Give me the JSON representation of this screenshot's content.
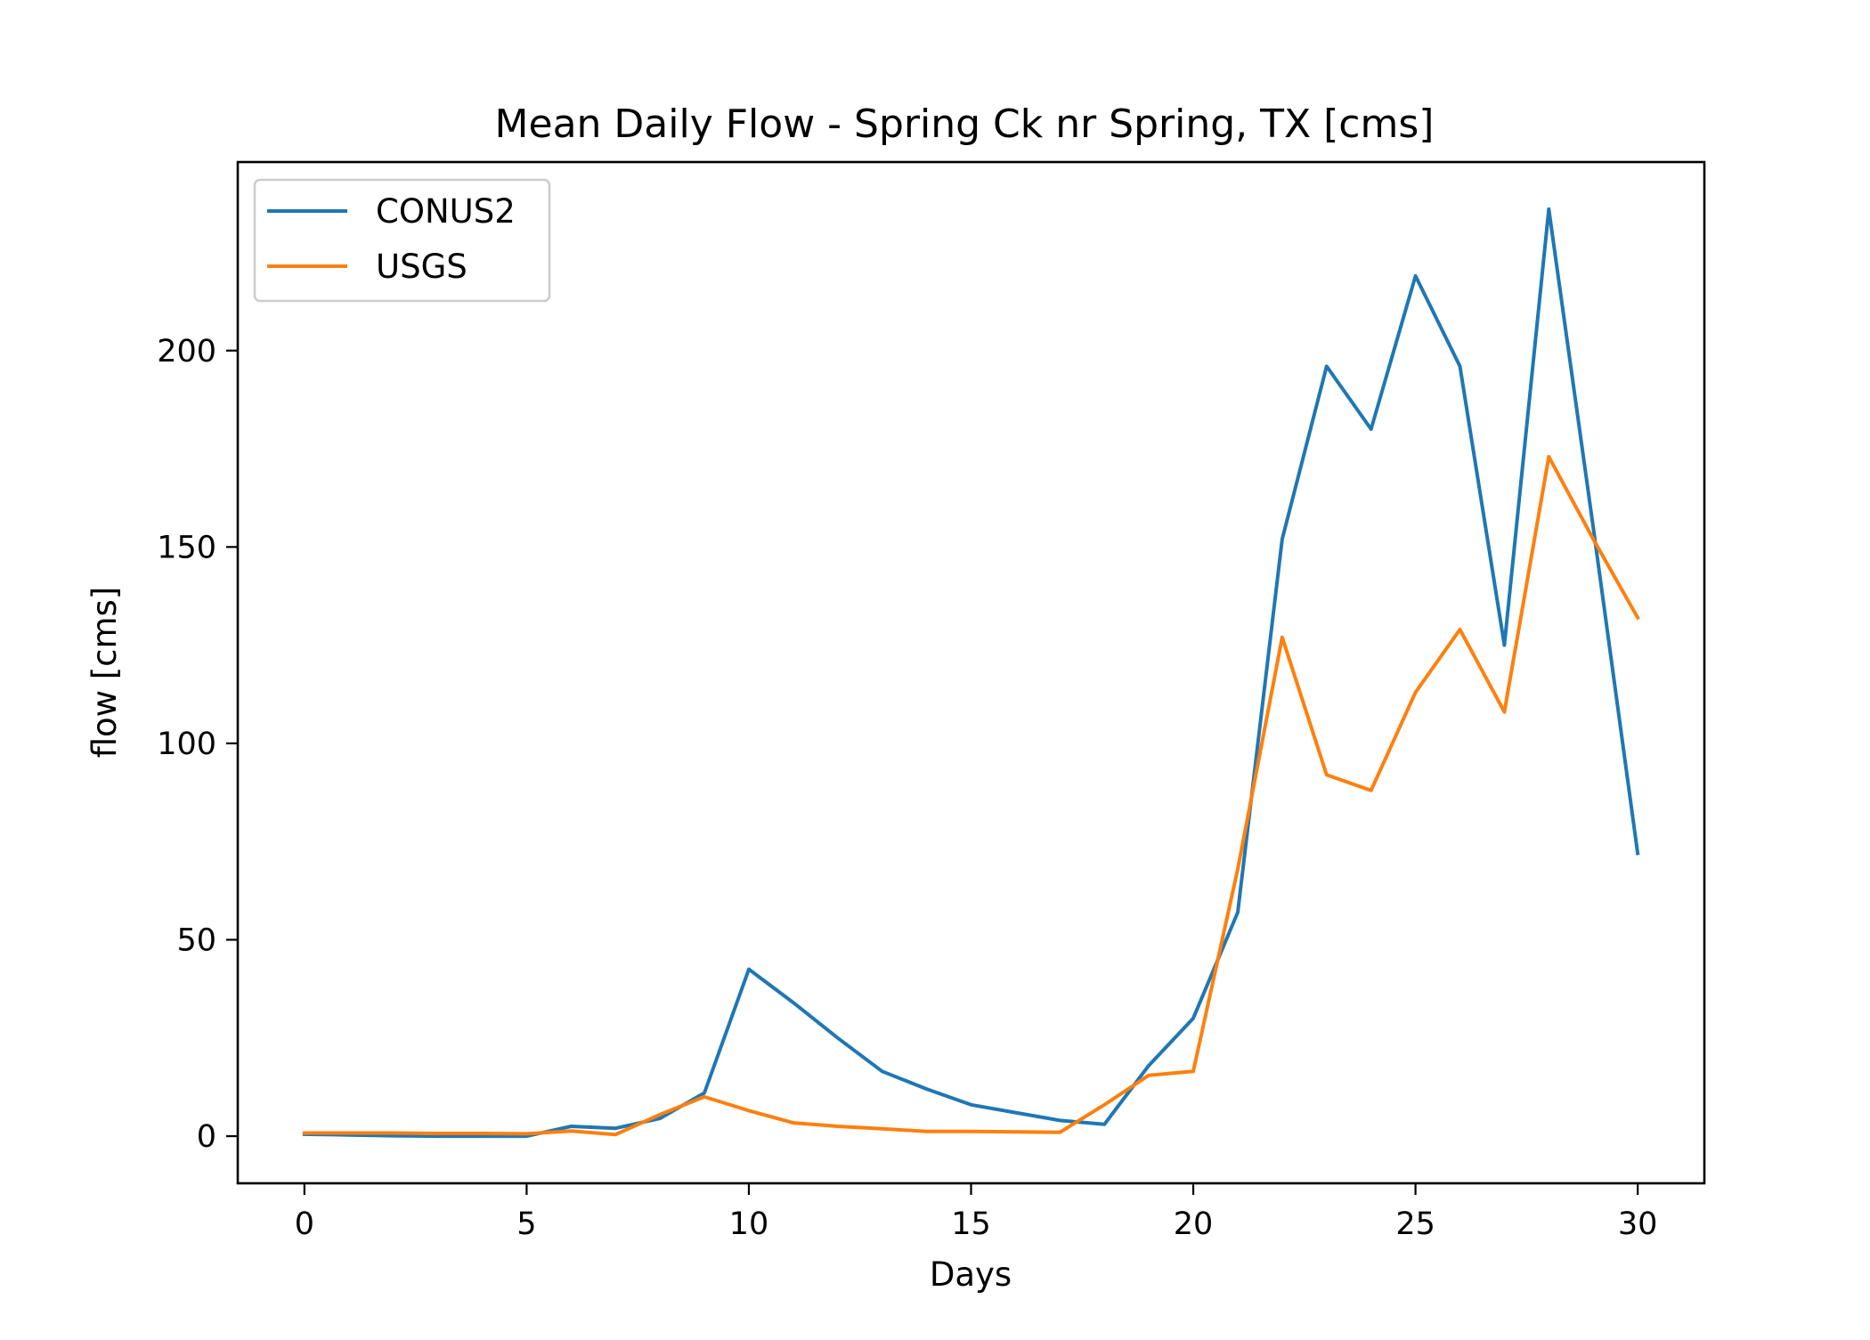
{
  "chart_data": {
    "type": "line",
    "title": "Mean Daily Flow - Spring Ck nr Spring, TX [cms]",
    "xlabel": "Days",
    "ylabel": "flow [cms]",
    "xlim": [
      -1.5,
      31.5
    ],
    "ylim": [
      -12,
      248
    ],
    "xticks": [
      0,
      5,
      10,
      15,
      20,
      25,
      30
    ],
    "yticks": [
      0,
      50,
      100,
      150,
      200
    ],
    "grid": false,
    "legend_position": "top-left",
    "x": [
      0,
      1,
      2,
      3,
      4,
      5,
      6,
      7,
      8,
      9,
      10,
      11,
      12,
      13,
      14,
      15,
      16,
      17,
      18,
      19,
      20,
      21,
      22,
      23,
      24,
      25,
      26,
      27,
      28,
      29,
      30
    ],
    "series": [
      {
        "name": "CONUS2",
        "color": "#1f77b4",
        "values": [
          0.5,
          0.3,
          0.1,
          0,
          0,
          0,
          2.5,
          2,
          4.5,
          11,
          42.5,
          34,
          25,
          16.5,
          12,
          8,
          6,
          4,
          3,
          18,
          30,
          57,
          152,
          196,
          180,
          219,
          196,
          125,
          236,
          155,
          72
        ]
      },
      {
        "name": "USGS",
        "color": "#ff7f0e",
        "values": [
          0.8,
          0.8,
          0.8,
          0.7,
          0.7,
          0.6,
          1.3,
          0.4,
          5.5,
          10,
          6.5,
          3.4,
          2.5,
          1.9,
          1.2,
          1.2,
          1.1,
          1.0,
          8,
          15.5,
          16.5,
          68,
          127,
          92,
          88,
          113,
          129,
          108,
          173,
          152,
          132
        ]
      }
    ]
  }
}
